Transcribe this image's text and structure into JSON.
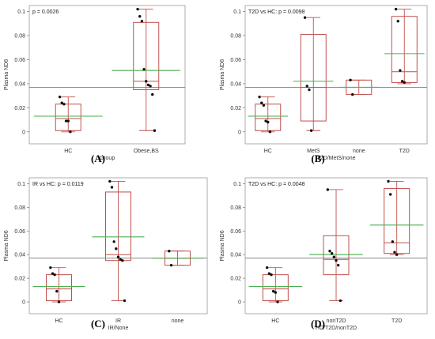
{
  "chart_data": [
    {
      "type": "box",
      "panel_label": "(A)",
      "annotation": "p = 0.0026",
      "ylabel": "Plasma ND6",
      "xlabel": "Group",
      "ylim": [
        -0.01,
        0.105
      ],
      "yticks": [
        0,
        0.02,
        0.04,
        0.06,
        0.08,
        0.1
      ],
      "ytick_labels": [
        "0",
        "0.02",
        "0.04",
        "0.06",
        "0.08",
        "0.1"
      ],
      "grand_mean": 0.037,
      "categories": [
        "HC",
        "Obese,BS"
      ],
      "boxes": [
        {
          "min": 0.0,
          "q1": 0.001,
          "median": 0.011,
          "q3": 0.023,
          "max": 0.029,
          "mean": 0.013,
          "points": [
            0.029,
            0.024,
            0.023,
            0.009,
            0.009,
            0.0
          ]
        },
        {
          "min": 0.001,
          "q1": 0.035,
          "median": 0.042,
          "q3": 0.091,
          "max": 0.102,
          "mean": 0.051,
          "points": [
            0.102,
            0.096,
            0.092,
            0.052,
            0.042,
            0.039,
            0.038,
            0.031,
            0.001
          ]
        }
      ]
    },
    {
      "type": "box",
      "panel_label": "(B)",
      "annotation": "T2D vs HC: p = 0.0098",
      "ylabel": "Plasma ND6",
      "xlabel": "T2D/MetS/none",
      "ylim": [
        -0.01,
        0.105
      ],
      "yticks": [
        0,
        0.02,
        0.04,
        0.06,
        0.08,
        0.1
      ],
      "ytick_labels": [
        "0",
        "0.02",
        "0.04",
        "0.06",
        "0.08",
        "0.1"
      ],
      "grand_mean": 0.037,
      "categories": [
        "HC",
        "MetS",
        "none",
        "T2D"
      ],
      "boxes": [
        {
          "min": 0.0,
          "q1": 0.001,
          "median": 0.011,
          "q3": 0.023,
          "max": 0.029,
          "mean": 0.013,
          "points": [
            0.029,
            0.024,
            0.022,
            0.009,
            0.008,
            0.0
          ]
        },
        {
          "min": 0.001,
          "q1": 0.009,
          "median": 0.037,
          "q3": 0.081,
          "max": 0.095,
          "mean": 0.042,
          "points": [
            0.095,
            0.038,
            0.035,
            0.001
          ]
        },
        {
          "min": 0.031,
          "q1": 0.031,
          "median": 0.037,
          "q3": 0.043,
          "max": 0.043,
          "mean": 0.037,
          "points": [
            0.043,
            0.031
          ]
        },
        {
          "min": 0.04,
          "q1": 0.041,
          "median": 0.05,
          "q3": 0.096,
          "max": 0.102,
          "mean": 0.065,
          "points": [
            0.102,
            0.092,
            0.051,
            0.042,
            0.041
          ]
        }
      ]
    },
    {
      "type": "box",
      "panel_label": "(C)",
      "annotation": "IR vs HC: p = 0.0119",
      "ylabel": "Plasma ND6",
      "xlabel": "IR/None",
      "ylim": [
        -0.01,
        0.105
      ],
      "yticks": [
        0,
        0.02,
        0.04,
        0.06,
        0.08,
        0.1
      ],
      "ytick_labels": [
        "0",
        "0.02",
        "0.04",
        "0.06",
        "0.08",
        "0.1"
      ],
      "grand_mean": 0.037,
      "categories": [
        "HC",
        "IR",
        "none"
      ],
      "boxes": [
        {
          "min": 0.0,
          "q1": 0.001,
          "median": 0.011,
          "q3": 0.023,
          "max": 0.029,
          "mean": 0.013,
          "points": [
            0.029,
            0.024,
            0.023,
            0.009,
            0.0
          ]
        },
        {
          "min": 0.001,
          "q1": 0.035,
          "median": 0.04,
          "q3": 0.093,
          "max": 0.102,
          "mean": 0.055,
          "points": [
            0.102,
            0.097,
            0.051,
            0.045,
            0.038,
            0.036,
            0.035,
            0.001
          ]
        },
        {
          "min": 0.031,
          "q1": 0.031,
          "median": 0.037,
          "q3": 0.043,
          "max": 0.043,
          "mean": 0.037,
          "points": [
            0.043,
            0.031
          ]
        }
      ]
    },
    {
      "type": "box",
      "panel_label": "(D)",
      "annotation": "T2D vs HC: p = 0.0048",
      "ylabel": "Plasma ND6",
      "xlabel": "HC/T2D/nonT2D",
      "ylim": [
        -0.01,
        0.105
      ],
      "yticks": [
        0,
        0.02,
        0.04,
        0.06,
        0.08,
        0.1
      ],
      "ytick_labels": [
        "0",
        "0.02",
        "0.04",
        "0.06",
        "0.08",
        "0.1"
      ],
      "grand_mean": 0.037,
      "categories": [
        "HC",
        "nonT2D",
        "T2D"
      ],
      "boxes": [
        {
          "min": 0.0,
          "q1": 0.001,
          "median": 0.011,
          "q3": 0.023,
          "max": 0.029,
          "mean": 0.013,
          "points": [
            0.029,
            0.024,
            0.023,
            0.009,
            0.008,
            0.0
          ]
        },
        {
          "min": 0.001,
          "q1": 0.023,
          "median": 0.036,
          "q3": 0.056,
          "max": 0.095,
          "mean": 0.04,
          "points": [
            0.095,
            0.043,
            0.041,
            0.038,
            0.035,
            0.031,
            0.001
          ]
        },
        {
          "min": 0.04,
          "q1": 0.041,
          "median": 0.05,
          "q3": 0.096,
          "max": 0.102,
          "mean": 0.065,
          "points": [
            0.102,
            0.091,
            0.051,
            0.042,
            0.04
          ]
        }
      ]
    }
  ],
  "colors": {
    "box": "#c0504d",
    "mean_line": "#4caf50",
    "grand_mean": "#7a7a7a",
    "point": "#111111",
    "annotation_bg": "#ffffff"
  }
}
